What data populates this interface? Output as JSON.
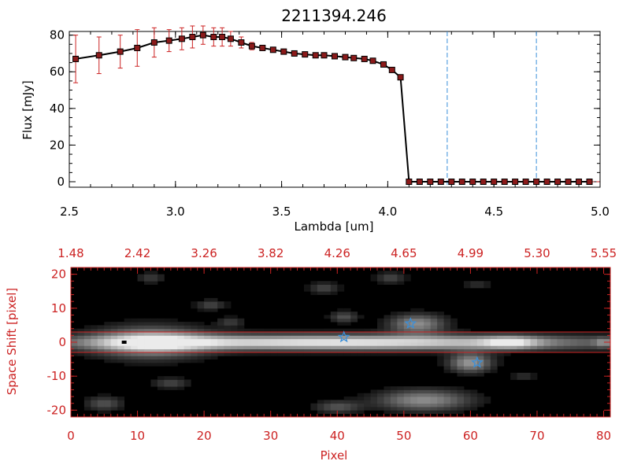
{
  "chart_data": [
    {
      "type": "line",
      "title": "2211394.246",
      "xlabel": "Lambda [um]",
      "ylabel": "Flux [mJy]",
      "xlim": [
        2.5,
        5.0
      ],
      "ylim": [
        -3,
        82
      ],
      "xticks": [
        "2.5",
        "3.0",
        "3.5",
        "4.0",
        "4.5",
        "5.0"
      ],
      "yticks": [
        "0",
        "20",
        "40",
        "60",
        "80"
      ],
      "vlines": [
        4.28,
        4.7
      ],
      "colors": {
        "line": "#000000",
        "marker": "#8b1a1a",
        "errorbar": "#cc2222",
        "vline": "#3a8fd9"
      },
      "series": [
        {
          "x": [
            2.53,
            2.64,
            2.74,
            2.82,
            2.9,
            2.97,
            3.03,
            3.08,
            3.13,
            3.18,
            3.22,
            3.26,
            3.31,
            3.36,
            3.41,
            3.46,
            3.51,
            3.56,
            3.61,
            3.66,
            3.7,
            3.75,
            3.8,
            3.84,
            3.89,
            3.93,
            3.98,
            4.02,
            4.06,
            4.1,
            4.15,
            4.2,
            4.25,
            4.3,
            4.35,
            4.4,
            4.45,
            4.5,
            4.55,
            4.6,
            4.65,
            4.7,
            4.75,
            4.8,
            4.85,
            4.9,
            4.95
          ],
          "y": [
            67,
            69,
            71,
            73,
            76,
            77,
            78,
            79,
            80,
            79,
            79,
            78,
            76,
            74,
            73,
            72,
            71,
            70,
            69.5,
            69,
            69,
            68.5,
            68,
            67.5,
            67,
            66,
            64,
            61,
            57,
            0,
            0,
            0,
            0,
            0,
            0,
            0,
            0,
            0,
            0,
            0,
            0,
            0,
            0,
            0,
            0,
            0,
            0
          ],
          "err": [
            13,
            10,
            9,
            10,
            8,
            6,
            6,
            6,
            5,
            5,
            5,
            4,
            3,
            2,
            1,
            1,
            1,
            1,
            1,
            1,
            1,
            1,
            1,
            1,
            1,
            1,
            1,
            1,
            1,
            0,
            0,
            0,
            0,
            0,
            0,
            0,
            0,
            0,
            0,
            0,
            0,
            0,
            0,
            0,
            0,
            0,
            0
          ]
        }
      ]
    },
    {
      "type": "heatmap",
      "xlabel": "Pixel",
      "ylabel": "Space Shift [pixel]",
      "xlim": [
        0,
        81
      ],
      "ylim": [
        -22,
        22
      ],
      "xticks": [
        "0",
        "10",
        "20",
        "30",
        "40",
        "50",
        "60",
        "70",
        "80"
      ],
      "yticks": [
        "-20",
        "-10",
        "0",
        "10",
        "20"
      ],
      "top_ticks": [
        "1.48",
        "2.42",
        "3.26",
        "3.82",
        "4.26",
        "4.65",
        "4.99",
        "5.30",
        "5.55"
      ],
      "hlines": [
        3,
        -3
      ],
      "colors": {
        "axis": "#cc2222",
        "star": "#3a8fd9",
        "background": "#000000"
      },
      "stars": [
        {
          "x": 41,
          "y": 1.5
        },
        {
          "x": 51,
          "y": 5.5
        },
        {
          "x": 61,
          "y": -6
        }
      ],
      "blobs": [
        {
          "x": 40,
          "y": 0,
          "sx": 28,
          "sy": 1.6,
          "v": 1.0
        },
        {
          "x": 12,
          "y": 0,
          "sx": 6,
          "sy": 3.2,
          "v": 0.75
        },
        {
          "x": 66,
          "y": 0,
          "sx": 3,
          "sy": 1.3,
          "v": 0.5
        },
        {
          "x": 52,
          "y": 5.5,
          "sx": 3,
          "sy": 2,
          "v": 0.6
        },
        {
          "x": 60,
          "y": -6,
          "sx": 2.3,
          "sy": 2,
          "v": 0.65
        },
        {
          "x": 53,
          "y": -17,
          "sx": 5,
          "sy": 2.2,
          "v": 0.6
        },
        {
          "x": 41,
          "y": 7.5,
          "sx": 1.5,
          "sy": 1.2,
          "v": 0.35
        },
        {
          "x": 38,
          "y": 16,
          "sx": 1.6,
          "sy": 1.2,
          "v": 0.3
        },
        {
          "x": 48,
          "y": 19,
          "sx": 1.6,
          "sy": 1.2,
          "v": 0.3
        },
        {
          "x": 21,
          "y": 11,
          "sx": 1.6,
          "sy": 1.1,
          "v": 0.3
        },
        {
          "x": 24,
          "y": 6,
          "sx": 1.4,
          "sy": 1,
          "v": 0.25
        },
        {
          "x": 12,
          "y": 19,
          "sx": 1.5,
          "sy": 1.2,
          "v": 0.25
        },
        {
          "x": 15,
          "y": -12,
          "sx": 2,
          "sy": 1.1,
          "v": 0.3
        },
        {
          "x": 40,
          "y": -19,
          "sx": 2.5,
          "sy": 1.3,
          "v": 0.35
        },
        {
          "x": 5,
          "y": -18,
          "sx": 2,
          "sy": 1.5,
          "v": 0.35
        },
        {
          "x": 80,
          "y": 0,
          "sx": 1,
          "sy": 1,
          "v": 0.3
        },
        {
          "x": 61,
          "y": 17,
          "sx": 1.5,
          "sy": 1,
          "v": 0.2
        },
        {
          "x": 68,
          "y": -10,
          "sx": 1.3,
          "sy": 1,
          "v": 0.2
        }
      ]
    }
  ]
}
